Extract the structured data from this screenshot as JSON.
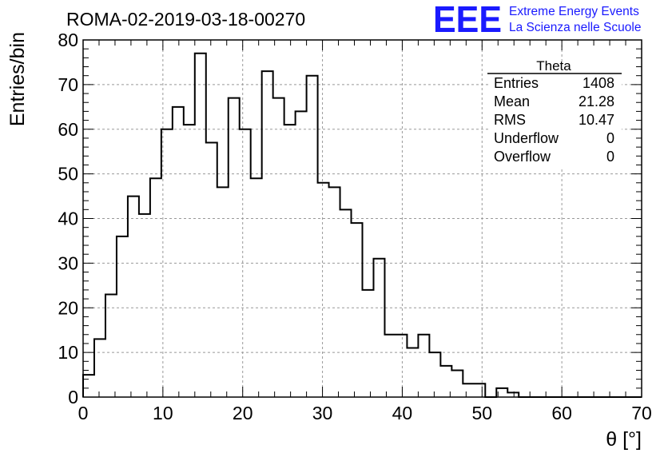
{
  "chart_data": {
    "type": "histogram",
    "title": "ROMA-02-2019-03-18-00270",
    "xlabel": "θ [°]",
    "ylabel": "Entries/bin",
    "xlim": [
      0,
      70
    ],
    "ylim": [
      0,
      80
    ],
    "bin_width": 1.4,
    "grid": true,
    "x_ticks": [
      "0",
      "10",
      "20",
      "30",
      "40",
      "50",
      "60",
      "70"
    ],
    "y_ticks": [
      "0",
      "10",
      "20",
      "30",
      "40",
      "50",
      "60",
      "70",
      "80"
    ],
    "values": [
      5,
      13,
      23,
      36,
      45,
      41,
      49,
      60,
      65,
      61,
      77,
      57,
      47,
      67,
      60,
      49,
      73,
      67,
      61,
      64,
      72,
      48,
      47,
      42,
      39,
      24,
      31,
      14,
      14,
      11,
      14,
      10,
      7,
      6,
      3,
      3,
      0,
      2,
      1,
      0,
      0,
      0,
      0,
      0,
      0,
      0,
      0,
      0,
      0,
      0
    ],
    "colors": {
      "line": "#000000",
      "grid": "#999999",
      "logo": "#1a1aff"
    }
  },
  "stats_box": {
    "title": "Theta",
    "rows": [
      {
        "label": "Entries",
        "value": "1408"
      },
      {
        "label": "Mean",
        "value": "21.28"
      },
      {
        "label": "RMS",
        "value": "10.47"
      },
      {
        "label": "Underflow",
        "value": "0"
      },
      {
        "label": "Overflow",
        "value": "0"
      }
    ]
  },
  "logo": {
    "mark": "EEE",
    "line1": "Extreme Energy Events",
    "line2": "La Scienza nelle Scuole"
  }
}
